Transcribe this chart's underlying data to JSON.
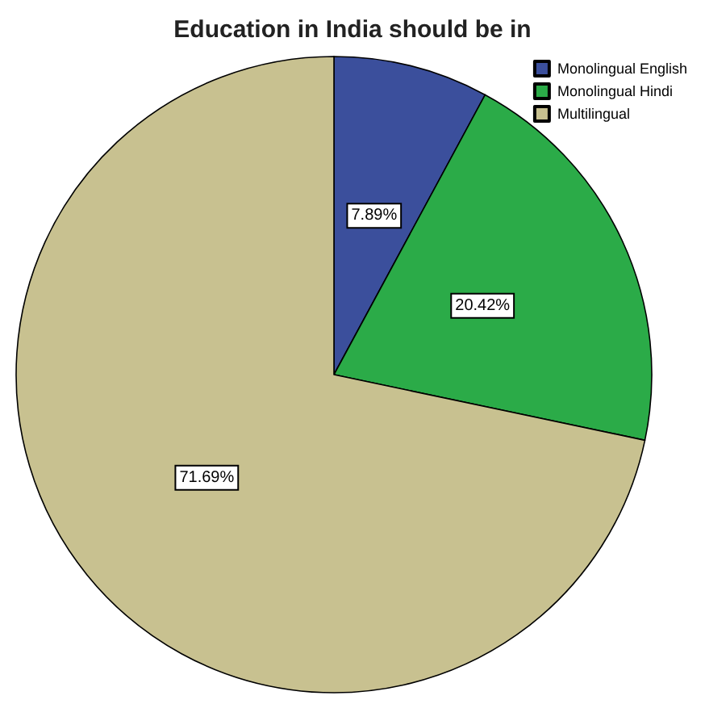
{
  "chart_data": {
    "type": "pie",
    "title": "Education in India should be in",
    "categories": [
      "Monolingual English",
      "Monolingual Hindi",
      "Multilingual"
    ],
    "values": [
      7.89,
      20.42,
      71.69
    ],
    "colors": [
      "#3b4f9c",
      "#2bab48",
      "#c8c190"
    ],
    "value_labels": [
      "7.89%",
      "20.42%",
      "71.69%"
    ],
    "legend": "top right"
  }
}
